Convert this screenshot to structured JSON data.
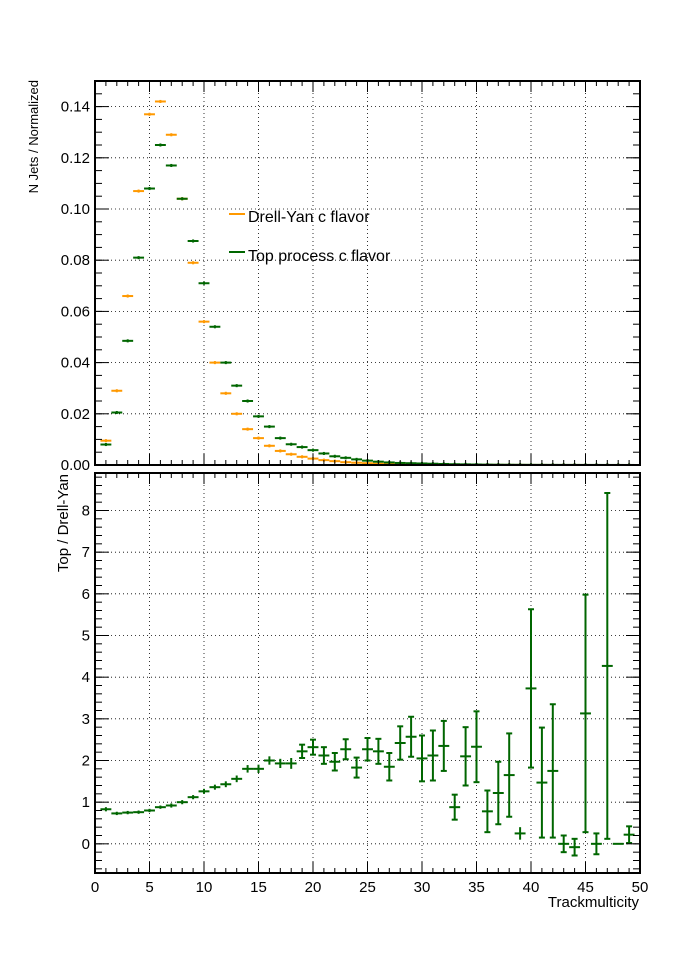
{
  "chart_data": [
    {
      "type": "scatter",
      "title": "",
      "xlabel": "",
      "ylabel": "N Jets / Normalized",
      "xlim": [
        0,
        50
      ],
      "ylim": [
        0,
        0.15
      ],
      "xticks": [
        "0",
        "5",
        "10",
        "15",
        "20",
        "25",
        "30",
        "35",
        "40",
        "45",
        "50"
      ],
      "yticks": [
        "0.00",
        "0.02",
        "0.04",
        "0.06",
        "0.08",
        "0.10",
        "0.12",
        "0.14"
      ],
      "grid": true,
      "legend_placement": "center",
      "series": [
        {
          "name": "Drell-Yan c flavor",
          "color": "#ff9900",
          "x": [
            1,
            2,
            3,
            4,
            5,
            6,
            7,
            8,
            9,
            10,
            11,
            12,
            13,
            14,
            15,
            16,
            17,
            18,
            19,
            20,
            21,
            22,
            23,
            24,
            25,
            26,
            27,
            28,
            29,
            30,
            31,
            32,
            33,
            34,
            35,
            36,
            37,
            38,
            39,
            40,
            41,
            42,
            43,
            44,
            45,
            46,
            47,
            48,
            49
          ],
          "y": [
            0.0095,
            0.029,
            0.066,
            0.107,
            0.137,
            0.142,
            0.129,
            0.104,
            0.079,
            0.056,
            0.04,
            0.028,
            0.02,
            0.014,
            0.0105,
            0.0075,
            0.0055,
            0.0042,
            0.0032,
            0.0025,
            0.0019,
            0.0015,
            0.0011,
            0.0009,
            0.0007,
            0.0005,
            0.0004,
            0.0003,
            0.00025,
            0.0002,
            0.00015,
            0.00012,
            0.0001,
            8e-05,
            6e-05,
            5e-05,
            4e-05,
            3e-05,
            3e-05,
            2e-05,
            2e-05,
            1e-05,
            1e-05,
            1e-05,
            1e-05,
            0,
            0,
            0,
            0
          ]
        },
        {
          "name": "Top process c flavor",
          "color": "#006600",
          "x": [
            1,
            2,
            3,
            4,
            5,
            6,
            7,
            8,
            9,
            10,
            11,
            12,
            13,
            14,
            15,
            16,
            17,
            18,
            19,
            20,
            21,
            22,
            23,
            24,
            25,
            26,
            27,
            28,
            29,
            30,
            31,
            32,
            33,
            34,
            35,
            36,
            37,
            38,
            39,
            40,
            41,
            42,
            43,
            44,
            45,
            46,
            47,
            48,
            49
          ],
          "y": [
            0.008,
            0.0205,
            0.0485,
            0.081,
            0.108,
            0.125,
            0.117,
            0.104,
            0.0875,
            0.071,
            0.054,
            0.04,
            0.031,
            0.025,
            0.019,
            0.015,
            0.0105,
            0.0081,
            0.007,
            0.0058,
            0.0045,
            0.0034,
            0.0028,
            0.0022,
            0.0017,
            0.0013,
            0.001,
            0.0008,
            0.0007,
            0.0006,
            0.0005,
            0.0004,
            0.0003,
            0.00025,
            0.0002,
            0.00015,
            0.00012,
            0.0001,
            8e-05,
            7e-05,
            6e-05,
            5e-05,
            4e-05,
            4e-05,
            3e-05,
            3e-05,
            2e-05,
            2e-05,
            1e-05
          ]
        }
      ]
    },
    {
      "type": "scatter",
      "title": "",
      "xlabel": "Trackmulticity",
      "ylabel": "Top / Drell-Yan",
      "xlim": [
        0,
        50
      ],
      "ylim": [
        -0.7,
        8.9
      ],
      "xticks": [
        "0",
        "5",
        "10",
        "15",
        "20",
        "25",
        "30",
        "35",
        "40",
        "45",
        "50"
      ],
      "yticks": [
        "0",
        "1",
        "2",
        "3",
        "4",
        "5",
        "6",
        "7",
        "8"
      ],
      "grid": true,
      "series": [
        {
          "name": "",
          "color": "#006600",
          "x": [
            1,
            2,
            3,
            4,
            5,
            6,
            7,
            8,
            9,
            10,
            11,
            12,
            13,
            14,
            15,
            16,
            17,
            18,
            19,
            20,
            21,
            22,
            23,
            24,
            25,
            26,
            27,
            28,
            29,
            30,
            31,
            32,
            33,
            34,
            35,
            36,
            37,
            38,
            39,
            40,
            41,
            42,
            43,
            44,
            45,
            46,
            47,
            48,
            49
          ],
          "y": [
            0.83,
            0.73,
            0.75,
            0.76,
            0.8,
            0.88,
            0.92,
            1.0,
            1.12,
            1.26,
            1.36,
            1.43,
            1.56,
            1.8,
            1.8,
            2.0,
            1.93,
            1.93,
            2.22,
            2.32,
            2.12,
            1.97,
            2.27,
            1.83,
            2.27,
            2.22,
            1.85,
            2.42,
            2.57,
            2.05,
            2.12,
            2.35,
            0.88,
            2.1,
            2.33,
            0.78,
            1.22,
            1.65,
            0.25,
            3.73,
            1.47,
            1.75,
            0.0,
            -0.08,
            3.13,
            0.0,
            4.27,
            0.0,
            0.22
          ],
          "err": [
            0.05,
            0.04,
            0.04,
            0.04,
            0.04,
            0.04,
            0.05,
            0.05,
            0.05,
            0.06,
            0.06,
            0.07,
            0.08,
            0.09,
            0.1,
            0.1,
            0.11,
            0.13,
            0.16,
            0.18,
            0.2,
            0.21,
            0.24,
            0.24,
            0.27,
            0.3,
            0.33,
            0.4,
            0.48,
            0.55,
            0.6,
            0.6,
            0.3,
            0.7,
            0.85,
            0.5,
            0.75,
            1.0,
            0.15,
            1.9,
            1.32,
            1.6,
            0.2,
            0.2,
            2.85,
            0.25,
            4.15,
            0.0,
            0.2
          ]
        }
      ]
    }
  ]
}
